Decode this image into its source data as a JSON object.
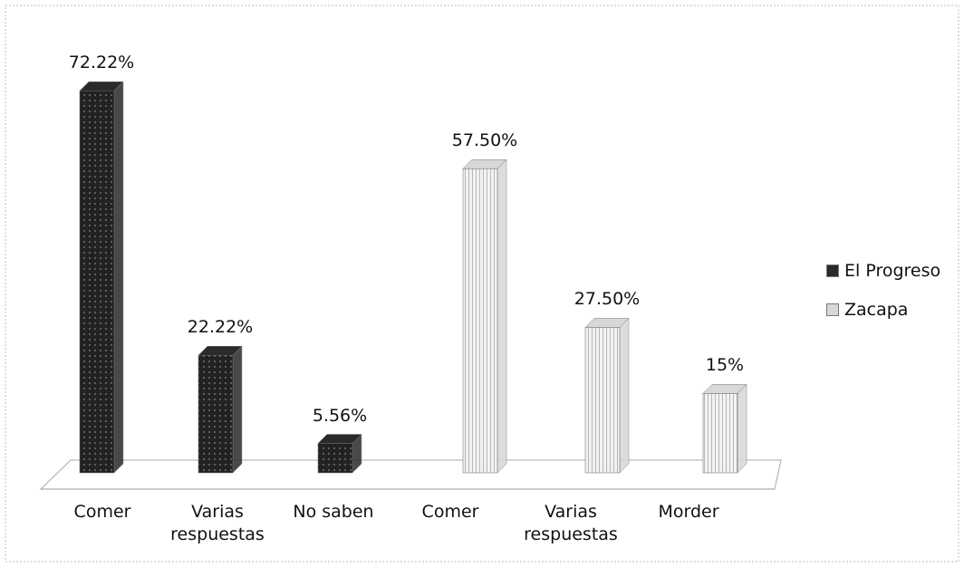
{
  "chart_data": {
    "type": "bar3d",
    "categories": [
      "Comer",
      "Varias respuestas",
      "No saben",
      "Comer",
      "Varias respuestas",
      "Morder"
    ],
    "series": [
      {
        "name": "El Progreso",
        "color": "#2a2a2a",
        "values": [
          72.22,
          22.22,
          5.56,
          null,
          null,
          null
        ],
        "value_labels": [
          "72.22%",
          "22.22%",
          "5.56%",
          null,
          null,
          null
        ]
      },
      {
        "name": "Zacapa",
        "color": "#d8d8d8",
        "values": [
          null,
          null,
          null,
          57.5,
          27.5,
          15
        ],
        "value_labels": [
          null,
          null,
          null,
          "57.50%",
          "27.50%",
          "15%"
        ]
      }
    ]
  }
}
